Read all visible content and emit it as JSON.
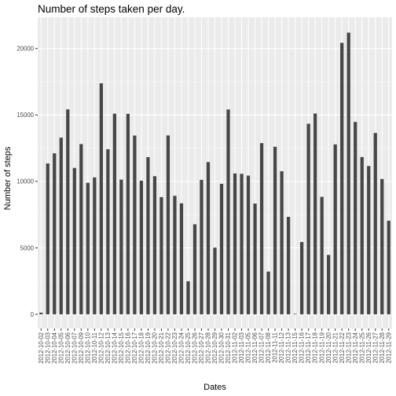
{
  "chart_data": {
    "type": "bar",
    "title": "Number of steps taken per day.",
    "xlabel": "Dates",
    "ylabel": "Number of steps",
    "ylim": [
      -1060,
      22350
    ],
    "yticks": [
      0,
      5000,
      10000,
      15000,
      20000
    ],
    "grid": true,
    "legend": "none",
    "categories": [
      "2012-10-02",
      "2012-10-03",
      "2012-10-04",
      "2012-10-05",
      "2012-10-06",
      "2012-10-07",
      "2012-10-09",
      "2012-10-10",
      "2012-10-11",
      "2012-10-12",
      "2012-10-13",
      "2012-10-14",
      "2012-10-15",
      "2012-10-16",
      "2012-10-17",
      "2012-10-18",
      "2012-10-19",
      "2012-10-20",
      "2012-10-21",
      "2012-10-22",
      "2012-10-23",
      "2012-10-24",
      "2012-10-25",
      "2012-10-26",
      "2012-10-27",
      "2012-10-28",
      "2012-10-29",
      "2012-10-30",
      "2012-10-31",
      "2012-11-02",
      "2012-11-03",
      "2012-11-05",
      "2012-11-06",
      "2012-11-07",
      "2012-11-08",
      "2012-11-11",
      "2012-11-12",
      "2012-11-13",
      "2012-11-15",
      "2012-11-16",
      "2012-11-17",
      "2012-11-18",
      "2012-11-19",
      "2012-11-20",
      "2012-11-21",
      "2012-11-22",
      "2012-11-23",
      "2012-11-24",
      "2012-11-25",
      "2012-11-26",
      "2012-11-27",
      "2012-11-28",
      "2012-11-29"
    ],
    "values": [
      126,
      11352,
      12116,
      13294,
      15420,
      11015,
      12811,
      9900,
      10304,
      17382,
      12426,
      15098,
      10139,
      15084,
      13452,
      10056,
      11829,
      10395,
      8821,
      13460,
      8918,
      8355,
      2492,
      6778,
      10119,
      11458,
      5018,
      9819,
      15414,
      10600,
      10571,
      10439,
      8334,
      12883,
      3219,
      12608,
      10765,
      7336,
      41,
      5441,
      14339,
      15110,
      8841,
      4472,
      12787,
      20427,
      21194,
      14478,
      11834,
      11162,
      13646,
      10183,
      7047
    ],
    "colors": {
      "bar": "#474747",
      "panel": "#ebebeb",
      "grid_major": "#ffffff",
      "grid_minor": "#f5f5f5"
    }
  }
}
